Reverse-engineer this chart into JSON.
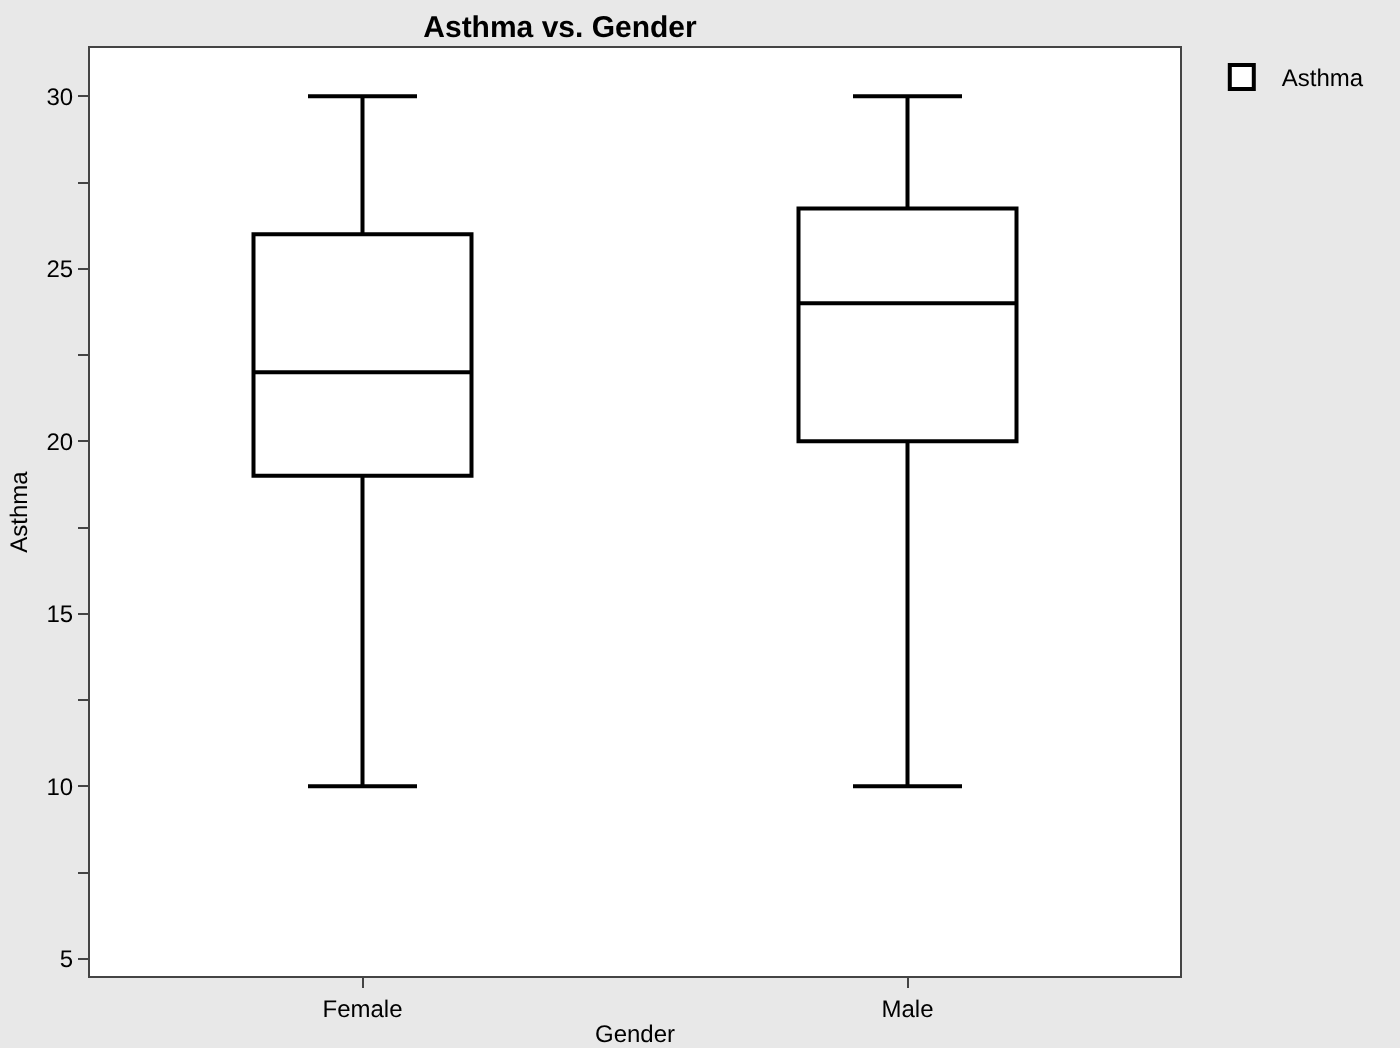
{
  "chart_data": {
    "type": "box",
    "title": "Asthma vs. Gender",
    "xlabel": "Gender",
    "ylabel": "Asthma",
    "categories": [
      "Female",
      "Male"
    ],
    "series": [
      {
        "name": "Asthma",
        "color": "#000000",
        "boxes": [
          {
            "low": 10,
            "q1": 19,
            "median": 22,
            "q3": 26,
            "high": 30
          },
          {
            "low": 10,
            "q1": 20,
            "median": 24,
            "q3": 26.75,
            "high": 30
          }
        ]
      }
    ],
    "ylim": [
      4.5,
      31.4
    ],
    "yticks": [
      5,
      {
        "value": 7.5,
        "label": null
      },
      10,
      {
        "value": 12.5,
        "label": null
      },
      15,
      {
        "value": 17.5,
        "label": null
      },
      20,
      {
        "value": 22.5,
        "label": null
      },
      25,
      {
        "value": 27.5,
        "label": null
      },
      30
    ],
    "grid": false,
    "legend": "top right"
  }
}
